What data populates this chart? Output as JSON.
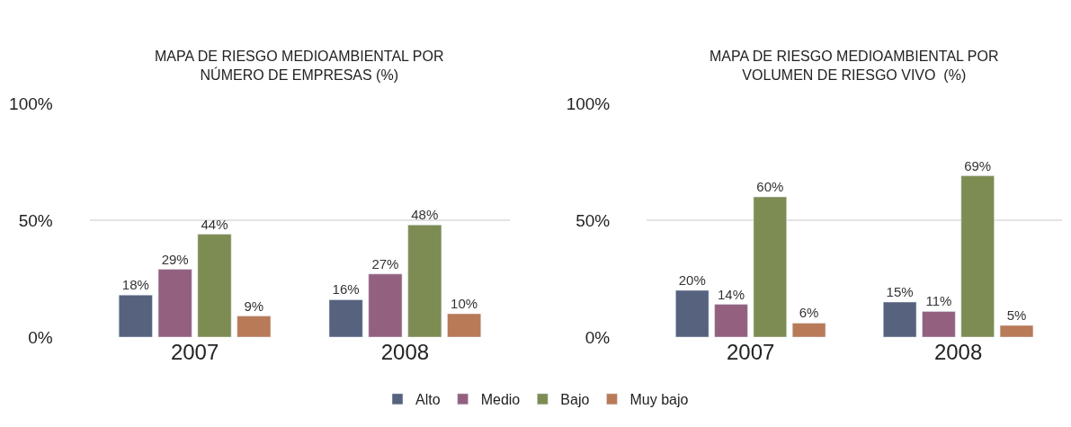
{
  "chart_data": [
    {
      "type": "bar",
      "title": "MAPA DE RIESGO MEDIOAMBIENTAL POR\nNÚMERO DE EMPRESAS (%)",
      "categories": [
        "2007",
        "2008"
      ],
      "ylim": [
        0,
        100
      ],
      "yticks": [
        {
          "value": 0,
          "label": "0%"
        },
        {
          "value": 50,
          "label": "50%"
        },
        {
          "value": 100,
          "label": "100%"
        }
      ],
      "grid": "y",
      "legend": "bottom",
      "series": [
        {
          "name": "Alto",
          "color": "#56627e",
          "values": [
            18,
            16
          ],
          "value_labels": [
            "18%",
            "16%"
          ]
        },
        {
          "name": "Medio",
          "color": "#93607f",
          "values": [
            29,
            27
          ],
          "value_labels": [
            "29%",
            "27%"
          ]
        },
        {
          "name": "Bajo",
          "color": "#7d8c52",
          "values": [
            44,
            48
          ],
          "value_labels": [
            "44%",
            "48%"
          ]
        },
        {
          "name": "Muy bajo",
          "color": "#b97a58",
          "values": [
            9,
            10
          ],
          "value_labels": [
            "9%",
            "10%"
          ]
        }
      ]
    },
    {
      "type": "bar",
      "title": "MAPA DE RIESGO MEDIOAMBIENTAL POR\nVOLUMEN DE RIESGO VIVO  (%)",
      "categories": [
        "2007",
        "2008"
      ],
      "ylim": [
        0,
        100
      ],
      "yticks": [
        {
          "value": 0,
          "label": "0%"
        },
        {
          "value": 50,
          "label": "50%"
        },
        {
          "value": 100,
          "label": "100%"
        }
      ],
      "grid": "y",
      "legend": "bottom",
      "series": [
        {
          "name": "Alto",
          "color": "#56627e",
          "values": [
            20,
            15
          ],
          "value_labels": [
            "20%",
            "15%"
          ]
        },
        {
          "name": "Medio",
          "color": "#93607f",
          "values": [
            14,
            11
          ],
          "value_labels": [
            "14%",
            "11%"
          ]
        },
        {
          "name": "Bajo",
          "color": "#7d8c52",
          "values": [
            60,
            69
          ],
          "value_labels": [
            "60%",
            "69%"
          ]
        },
        {
          "name": "Muy bajo",
          "color": "#b97a58",
          "values": [
            6,
            5
          ],
          "value_labels": [
            "6%",
            "5%"
          ]
        }
      ]
    }
  ]
}
